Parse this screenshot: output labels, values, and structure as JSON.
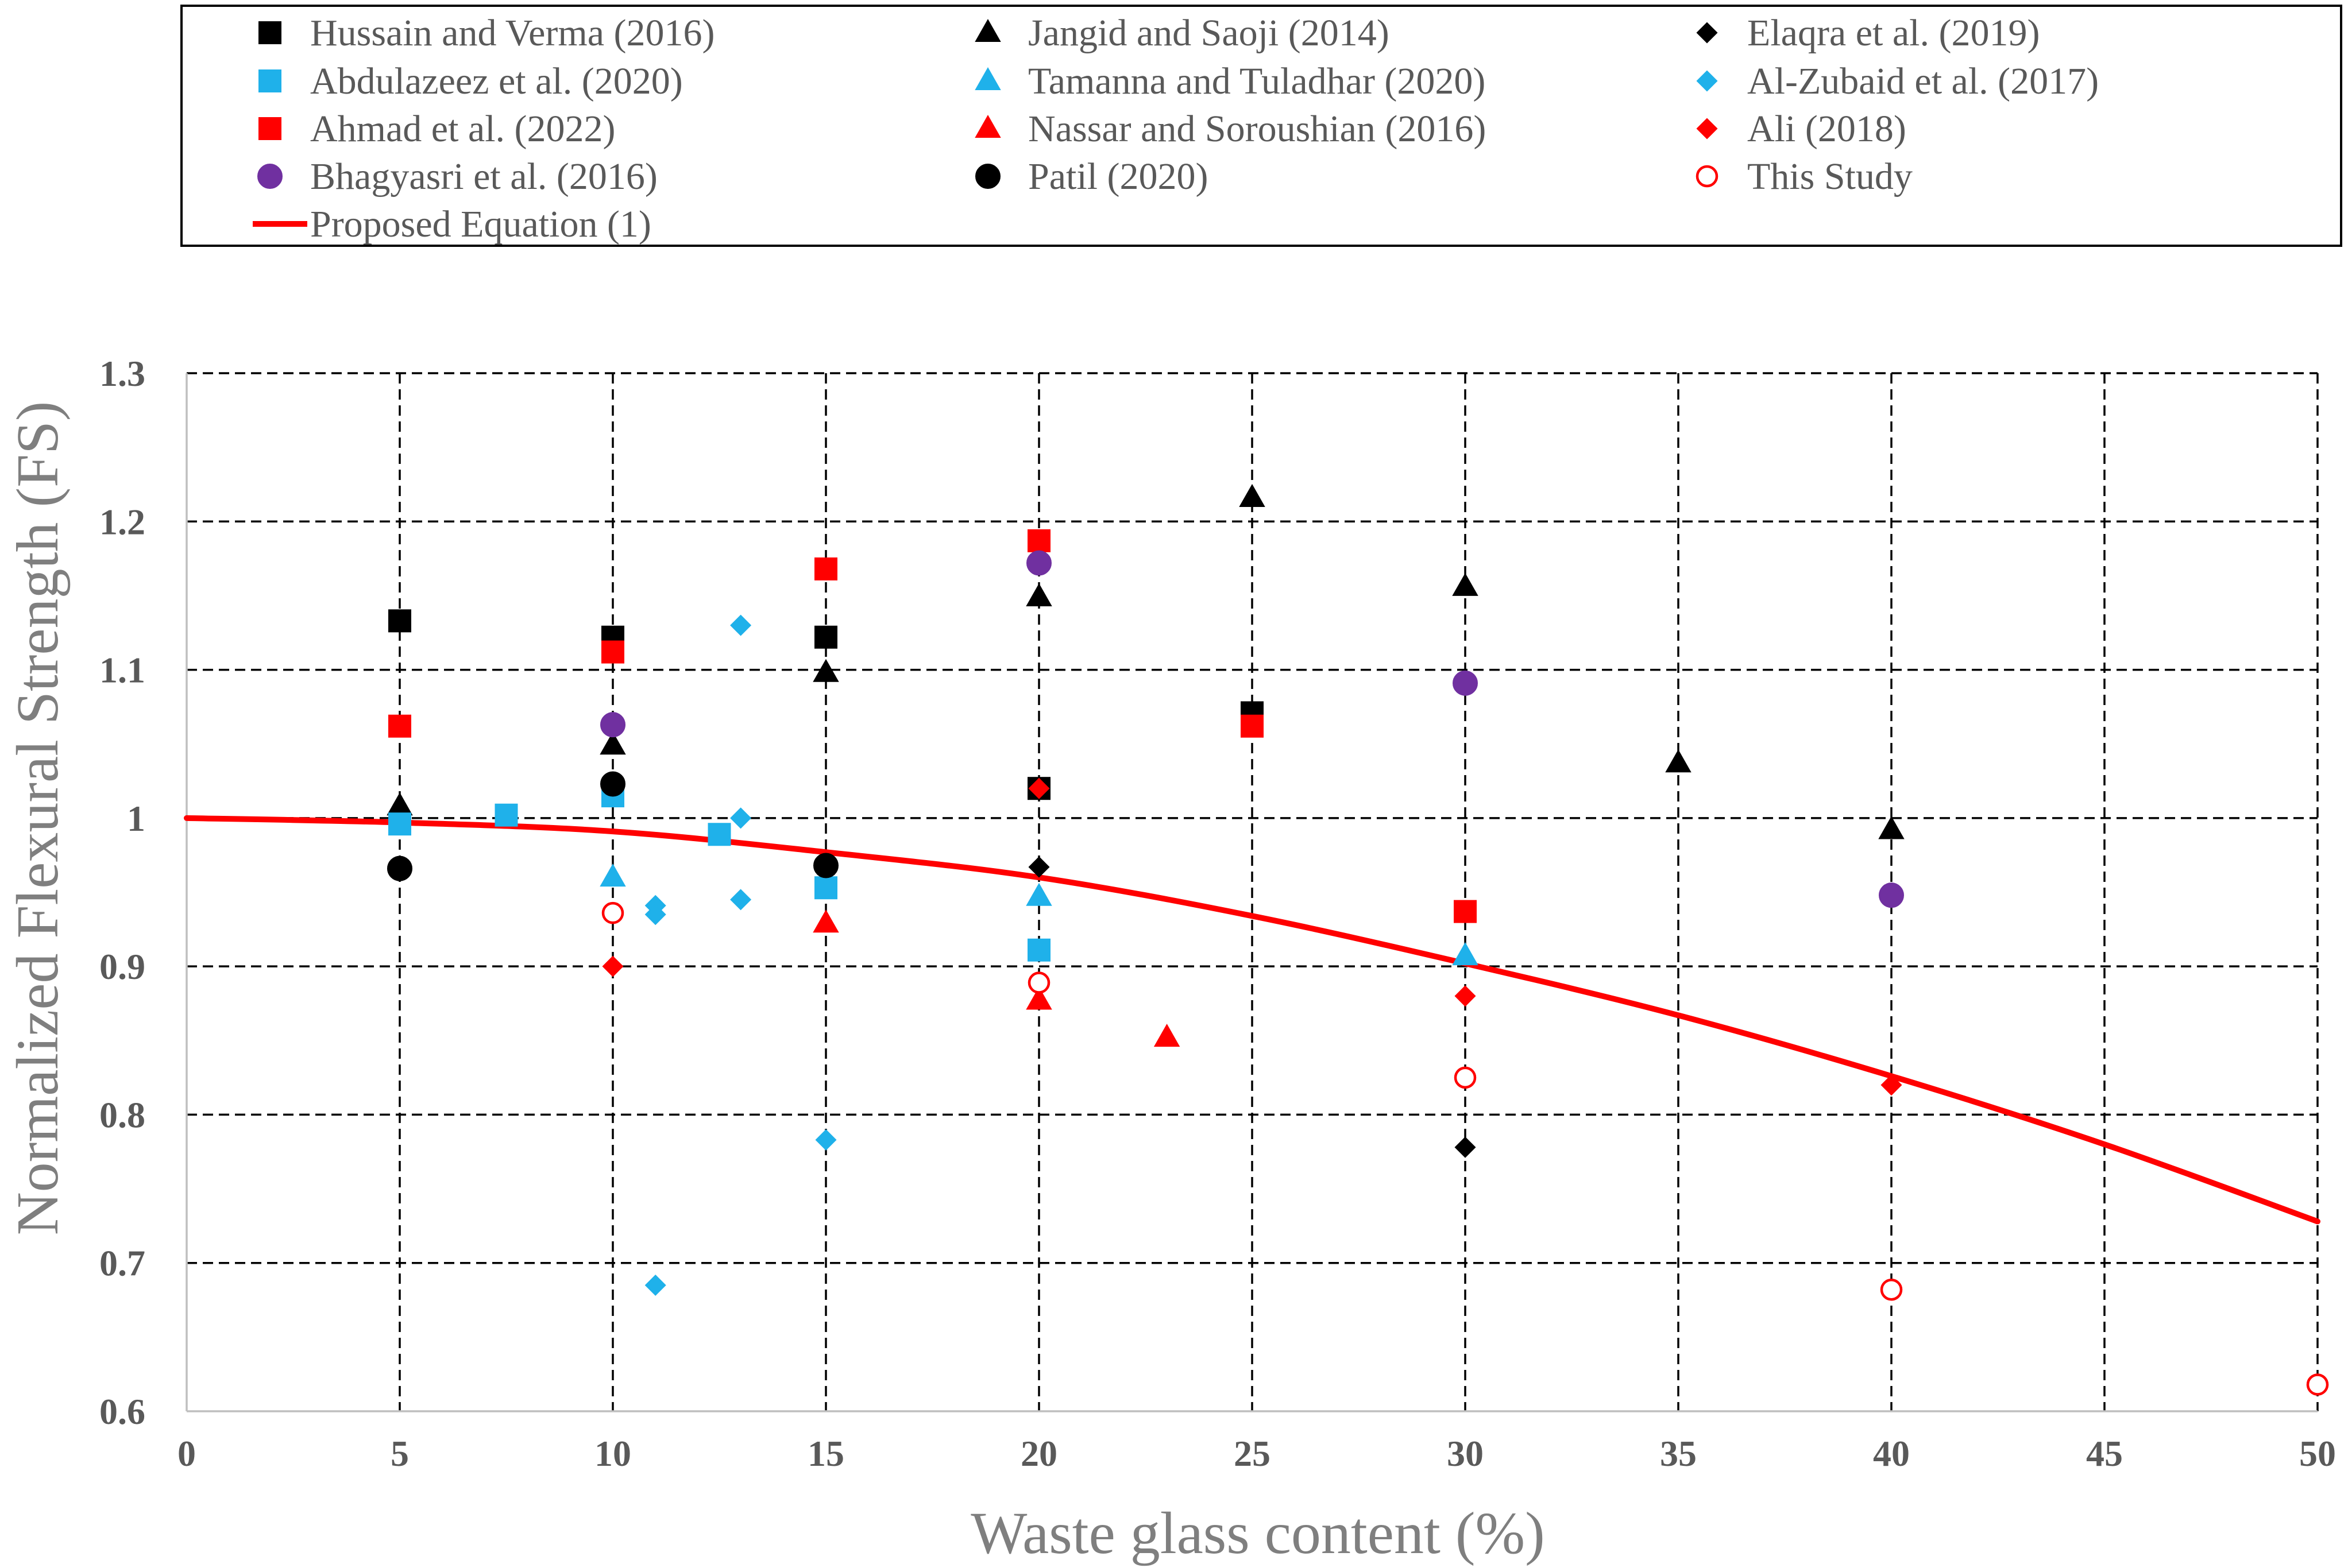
{
  "chart_data": {
    "type": "scatter",
    "xlabel": "Waste glass content (%)",
    "ylabel": "Normalized Flexural Strength (FS)",
    "xlim": [
      0,
      50
    ],
    "ylim": [
      0.6,
      1.3
    ],
    "grid": true,
    "legend_position": "top",
    "xticks": [
      "0",
      "5",
      "10",
      "15",
      "20",
      "25",
      "30",
      "35",
      "40",
      "45",
      "50"
    ],
    "yticks": [
      "0.6",
      "0.7",
      "0.8",
      "0.9",
      "1",
      "1.1",
      "1.2",
      "1.3"
    ],
    "series": [
      {
        "name": "Hussain and Verma (2016)",
        "marker": "square",
        "color": "#000000",
        "fill": true,
        "points": [
          [
            5,
            1.133
          ],
          [
            10,
            1.122
          ],
          [
            15,
            1.122
          ],
          [
            20,
            1.02
          ],
          [
            25,
            1.071
          ]
        ]
      },
      {
        "name": "Jangid and Saoji (2014)",
        "marker": "triangle",
        "color": "#000000",
        "fill": true,
        "points": [
          [
            5,
            1.008
          ],
          [
            10,
            1.049
          ],
          [
            15,
            1.098
          ],
          [
            20,
            1.149
          ],
          [
            25,
            1.216
          ],
          [
            30,
            1.156
          ],
          [
            35,
            1.037
          ],
          [
            40,
            0.992
          ]
        ]
      },
      {
        "name": "Elaqra et al. (2019)",
        "marker": "diamond",
        "color": "#000000",
        "fill": true,
        "points": [
          [
            20,
            0.967
          ],
          [
            30,
            0.778
          ]
        ]
      },
      {
        "name": "Abdulazeez et al. (2020)",
        "marker": "square",
        "color": "#1fb1ea",
        "fill": true,
        "points": [
          [
            5,
            0.996
          ],
          [
            7.5,
            1.002
          ],
          [
            10,
            1.015
          ],
          [
            12.5,
            0.989
          ],
          [
            15,
            0.953
          ],
          [
            20,
            0.911
          ]
        ]
      },
      {
        "name": "Tamanna and Tuladhar (2020)",
        "marker": "triangle",
        "color": "#1fb1ea",
        "fill": true,
        "points": [
          [
            10,
            0.96
          ],
          [
            20,
            0.947
          ],
          [
            30,
            0.907
          ]
        ]
      },
      {
        "name": "Al-Zubaid et al. (2017)",
        "marker": "diamond",
        "color": "#1fb1ea",
        "fill": true,
        "points": [
          [
            11,
            0.941
          ],
          [
            11,
            0.935
          ],
          [
            11,
            0.685
          ],
          [
            13,
            1.13
          ],
          [
            13,
            1.0
          ],
          [
            13,
            0.945
          ],
          [
            15,
            0.783
          ]
        ]
      },
      {
        "name": "Ahmad et al. (2022)",
        "marker": "square",
        "color": "#ff0000",
        "fill": true,
        "points": [
          [
            5,
            1.062
          ],
          [
            10,
            1.112
          ],
          [
            15,
            1.168
          ],
          [
            20,
            1.187
          ],
          [
            25,
            1.062
          ],
          [
            30,
            0.937
          ]
        ]
      },
      {
        "name": "Nassar and Soroushian (2016)",
        "marker": "triangle",
        "color": "#ff0000",
        "fill": true,
        "points": [
          [
            15,
            0.929
          ],
          [
            20,
            0.877
          ],
          [
            23,
            0.852
          ]
        ]
      },
      {
        "name": "Ali (2018)",
        "marker": "diamond",
        "color": "#ff0000",
        "fill": true,
        "points": [
          [
            10,
            0.9
          ],
          [
            20,
            1.02
          ],
          [
            30,
            0.88
          ],
          [
            40,
            0.82
          ]
        ]
      },
      {
        "name": "Bhagyasri et al. (2016)",
        "marker": "circle",
        "color": "#7030a0",
        "fill": true,
        "points": [
          [
            10,
            1.063
          ],
          [
            20,
            1.172
          ],
          [
            30,
            1.091
          ],
          [
            40,
            0.948
          ]
        ]
      },
      {
        "name": "Patil (2020)",
        "marker": "circle",
        "color": "#000000",
        "fill": true,
        "points": [
          [
            5,
            0.966
          ],
          [
            10,
            1.023
          ],
          [
            15,
            0.968
          ]
        ]
      },
      {
        "name": "This Study",
        "marker": "circle",
        "color": "#ff0000",
        "fill": false,
        "points": [
          [
            10,
            0.936
          ],
          [
            20,
            0.889
          ],
          [
            30,
            0.825
          ],
          [
            40,
            0.682
          ],
          [
            50,
            0.618
          ]
        ]
      }
    ],
    "line_series": [
      {
        "name": "Proposed Equation (1)",
        "color": "#ff0000",
        "points": [
          [
            0,
            1.0
          ],
          [
            5,
            0.997
          ],
          [
            10,
            0.991
          ],
          [
            15,
            0.977
          ],
          [
            20,
            0.96
          ],
          [
            25,
            0.934
          ],
          [
            30,
            0.902
          ],
          [
            35,
            0.867
          ],
          [
            40,
            0.826
          ],
          [
            45,
            0.78
          ],
          [
            50,
            0.728
          ]
        ]
      }
    ]
  }
}
